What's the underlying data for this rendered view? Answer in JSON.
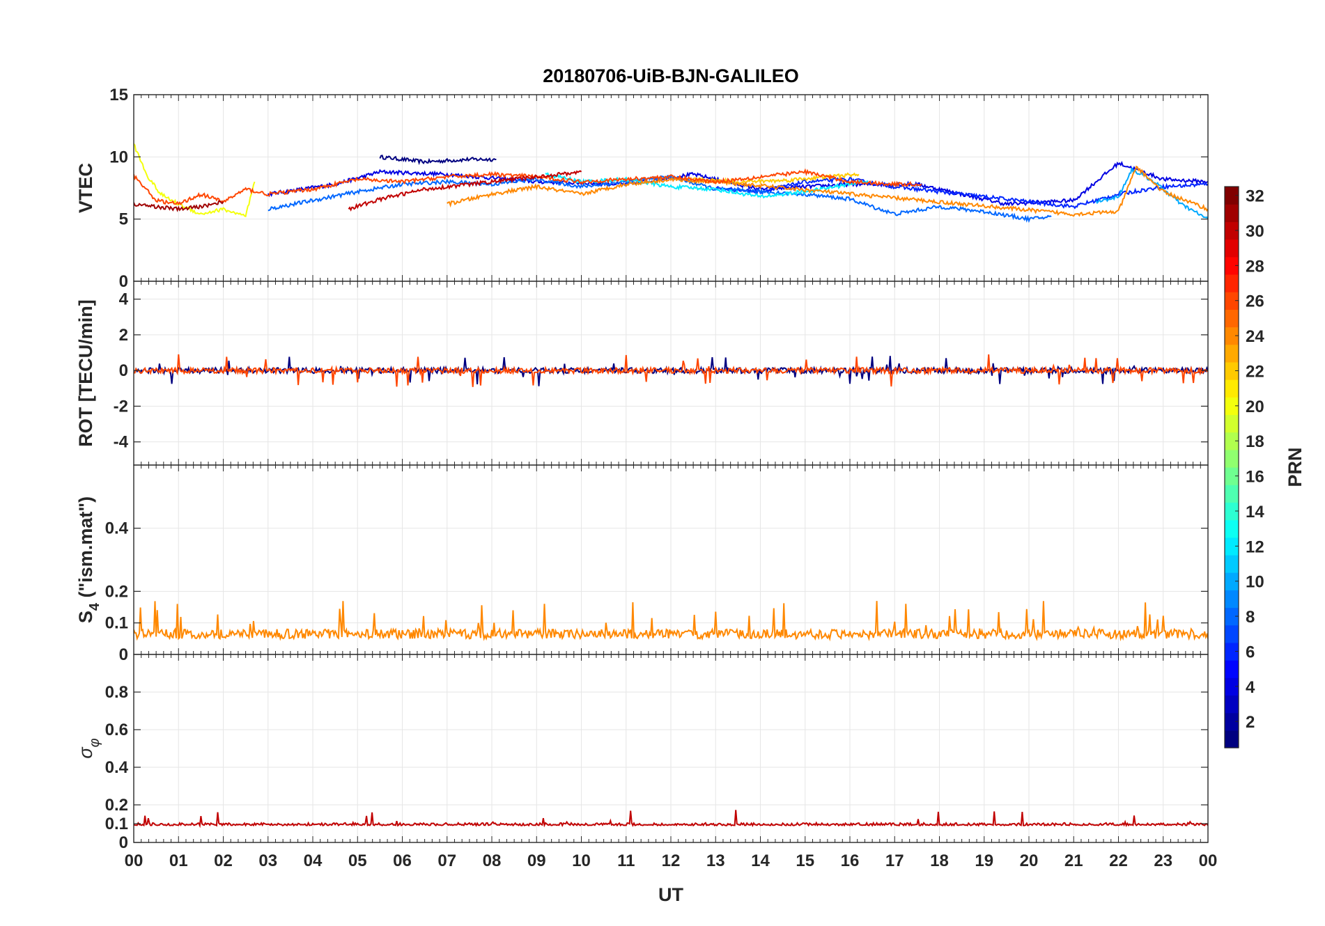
{
  "chart_data": {
    "type": "line",
    "title": "20180706-UiB-BJN-GALILEO",
    "xlabel": "UT",
    "x_ticks": [
      "00",
      "01",
      "02",
      "03",
      "04",
      "05",
      "06",
      "07",
      "08",
      "09",
      "10",
      "11",
      "12",
      "13",
      "14",
      "15",
      "16",
      "17",
      "18",
      "19",
      "20",
      "21",
      "22",
      "23",
      "00"
    ],
    "xlim": [
      0,
      24
    ],
    "grid": true,
    "panels": [
      {
        "ylabel": "VTEC",
        "ylim": [
          0,
          15
        ],
        "y_ticks": [
          "0",
          "5",
          "10",
          "15"
        ],
        "tick_values": [
          0,
          5,
          10,
          15
        ],
        "series": [
          {
            "prn": 1,
            "x": [
              5.5,
              6.5,
              7.5,
              8.1
            ],
            "y": [
              10.0,
              9.6,
              9.8,
              9.8
            ]
          },
          {
            "prn": 4,
            "x": [
              3.0,
              4.5,
              5.5,
              7.0,
              9.0,
              11.0,
              12.5,
              14.0,
              16.0,
              17.5,
              19.5,
              21.0,
              22.0,
              23.0,
              24.0
            ],
            "y": [
              7.0,
              7.8,
              8.8,
              8.6,
              8.0,
              7.8,
              8.6,
              7.4,
              7.8,
              7.8,
              6.2,
              6.5,
              9.5,
              8.2,
              8.0
            ]
          },
          {
            "prn": 6,
            "x": [
              13.0,
              14.0,
              15.0,
              16.0,
              17.0,
              18.0,
              19.0,
              20.0,
              21.0,
              22.0,
              23.0,
              24.0
            ],
            "y": [
              7.5,
              7.2,
              8.0,
              8.2,
              7.6,
              7.2,
              6.8,
              6.4,
              6.0,
              7.0,
              7.6,
              7.8
            ]
          },
          {
            "prn": 8,
            "x": [
              3.0,
              4.0,
              5.0,
              6.0,
              7.0,
              8.0,
              9.0,
              10.0,
              11.0,
              12.0,
              13.0,
              14.0,
              15.0,
              16.0,
              17.0,
              18.0,
              19.0,
              20.0,
              20.5
            ],
            "y": [
              5.8,
              6.5,
              7.2,
              7.8,
              8.0,
              7.8,
              8.2,
              7.6,
              8.0,
              8.4,
              7.4,
              7.2,
              7.0,
              6.6,
              5.4,
              6.0,
              5.6,
              5.0,
              5.2
            ]
          },
          {
            "prn": 10,
            "x": [
              21.5,
              22.0,
              22.3,
              22.8,
              23.4,
              24.0
            ],
            "y": [
              6.4,
              6.8,
              9.0,
              8.0,
              6.2,
              5.0
            ]
          },
          {
            "prn": 12,
            "x": [
              9.2,
              9.5,
              10.0,
              11.0,
              12.0,
              13.0,
              14.0,
              15.0,
              16.0,
              16.4
            ],
            "y": [
              8.6,
              8.4,
              8.0,
              8.2,
              7.6,
              7.4,
              6.8,
              7.2,
              7.8,
              8.1
            ]
          },
          {
            "prn": 20,
            "x": [
              0.0,
              0.3,
              0.6,
              1.0,
              1.5,
              2.0,
              2.5,
              2.7
            ],
            "y": [
              11.0,
              8.5,
              7.0,
              6.2,
              5.4,
              5.8,
              5.2,
              8.0
            ]
          },
          {
            "prn": 22,
            "x": [
              12.5,
              13.5,
              14.5,
              15.5,
              16.2
            ],
            "y": [
              8.2,
              8.0,
              8.1,
              8.4,
              8.6
            ]
          },
          {
            "prn": 24,
            "x": [
              7.0,
              8.0,
              9.0,
              10.0,
              11.0,
              12.0,
              13.0,
              21.0,
              22.0,
              22.4,
              23.0,
              24.0
            ],
            "y": [
              6.2,
              7.0,
              7.6,
              7.0,
              7.8,
              8.2,
              8.0,
              5.4,
              5.6,
              9.2,
              7.2,
              5.8
            ]
          },
          {
            "prn": 26,
            "x": [
              0.0,
              0.5,
              1.0,
              1.5,
              2.0,
              2.5,
              3.0,
              4.0,
              5.0,
              6.0,
              7.0,
              8.0,
              9.0,
              10.0,
              11.0,
              12.0,
              13.0,
              14.0,
              15.0,
              16.0,
              17.0,
              17.6
            ],
            "y": [
              8.5,
              6.5,
              6.2,
              7.0,
              6.4,
              7.4,
              7.0,
              7.4,
              8.2,
              8.0,
              8.4,
              8.6,
              8.4,
              8.0,
              8.2,
              8.4,
              8.0,
              8.4,
              8.8,
              8.0,
              7.8,
              7.8
            ]
          },
          {
            "prn": 30,
            "x": [
              4.8,
              5.5,
              6.5,
              7.5,
              8.5,
              9.5,
              10.0
            ],
            "y": [
              5.8,
              6.6,
              7.4,
              7.8,
              8.2,
              8.6,
              8.8
            ]
          },
          {
            "prn": 31,
            "x": [
              0.0,
              0.5,
              1.0,
              1.5,
              2.0
            ],
            "y": [
              6.2,
              6.0,
              5.8,
              6.0,
              6.4
            ]
          }
        ]
      },
      {
        "ylabel": "ROT [TECU/min]",
        "ylim": [
          -5.3,
          5.0
        ],
        "y_ticks": [
          "-4",
          "-2",
          "0",
          "2",
          "4"
        ],
        "tick_values": [
          -4,
          -2,
          0,
          2,
          4
        ],
        "series": [
          {
            "prn": 1,
            "x": [
              0,
              24
            ],
            "y": [
              0,
              0
            ]
          },
          {
            "prn": 26,
            "x": [
              0,
              24
            ],
            "y": [
              0,
              0
            ]
          }
        ]
      },
      {
        "ylabel": "S4 (\"ism.mat\")",
        "ylabel_main": "S",
        "ylabel_sub": "4",
        "ylabel_rest": " (\"ism.mat\")",
        "ylim": [
          0,
          0.6
        ],
        "y_ticks": [
          "0",
          "0.1",
          "0.2",
          "0.4"
        ],
        "tick_values": [
          0,
          0.1,
          0.2,
          0.4
        ],
        "series": [
          {
            "prn": 24,
            "x": [
              0,
              24
            ],
            "y": [
              0.05,
              0.05
            ]
          }
        ]
      },
      {
        "ylabel": "σφ",
        "ylabel_main": "σ",
        "ylabel_sub": "φ",
        "ylim": [
          0,
          1.0
        ],
        "y_ticks": [
          "0",
          "0.1",
          "0.2",
          "0.4",
          "0.6",
          "0.8"
        ],
        "tick_values": [
          0,
          0.1,
          0.2,
          0.4,
          0.6,
          0.8
        ],
        "series": [
          {
            "prn": 30,
            "x": [
              0,
              24
            ],
            "y": [
              0.09,
              0.09
            ]
          }
        ]
      }
    ],
    "colorbar": {
      "label": "PRN",
      "min": 1,
      "max": 32,
      "ticks": [
        "2",
        "4",
        "6",
        "8",
        "10",
        "12",
        "14",
        "16",
        "18",
        "20",
        "22",
        "24",
        "26",
        "28",
        "30",
        "32"
      ],
      "tick_values": [
        2,
        4,
        6,
        8,
        10,
        12,
        14,
        16,
        18,
        20,
        22,
        24,
        26,
        28,
        30,
        32
      ],
      "colormap": "jet"
    }
  }
}
